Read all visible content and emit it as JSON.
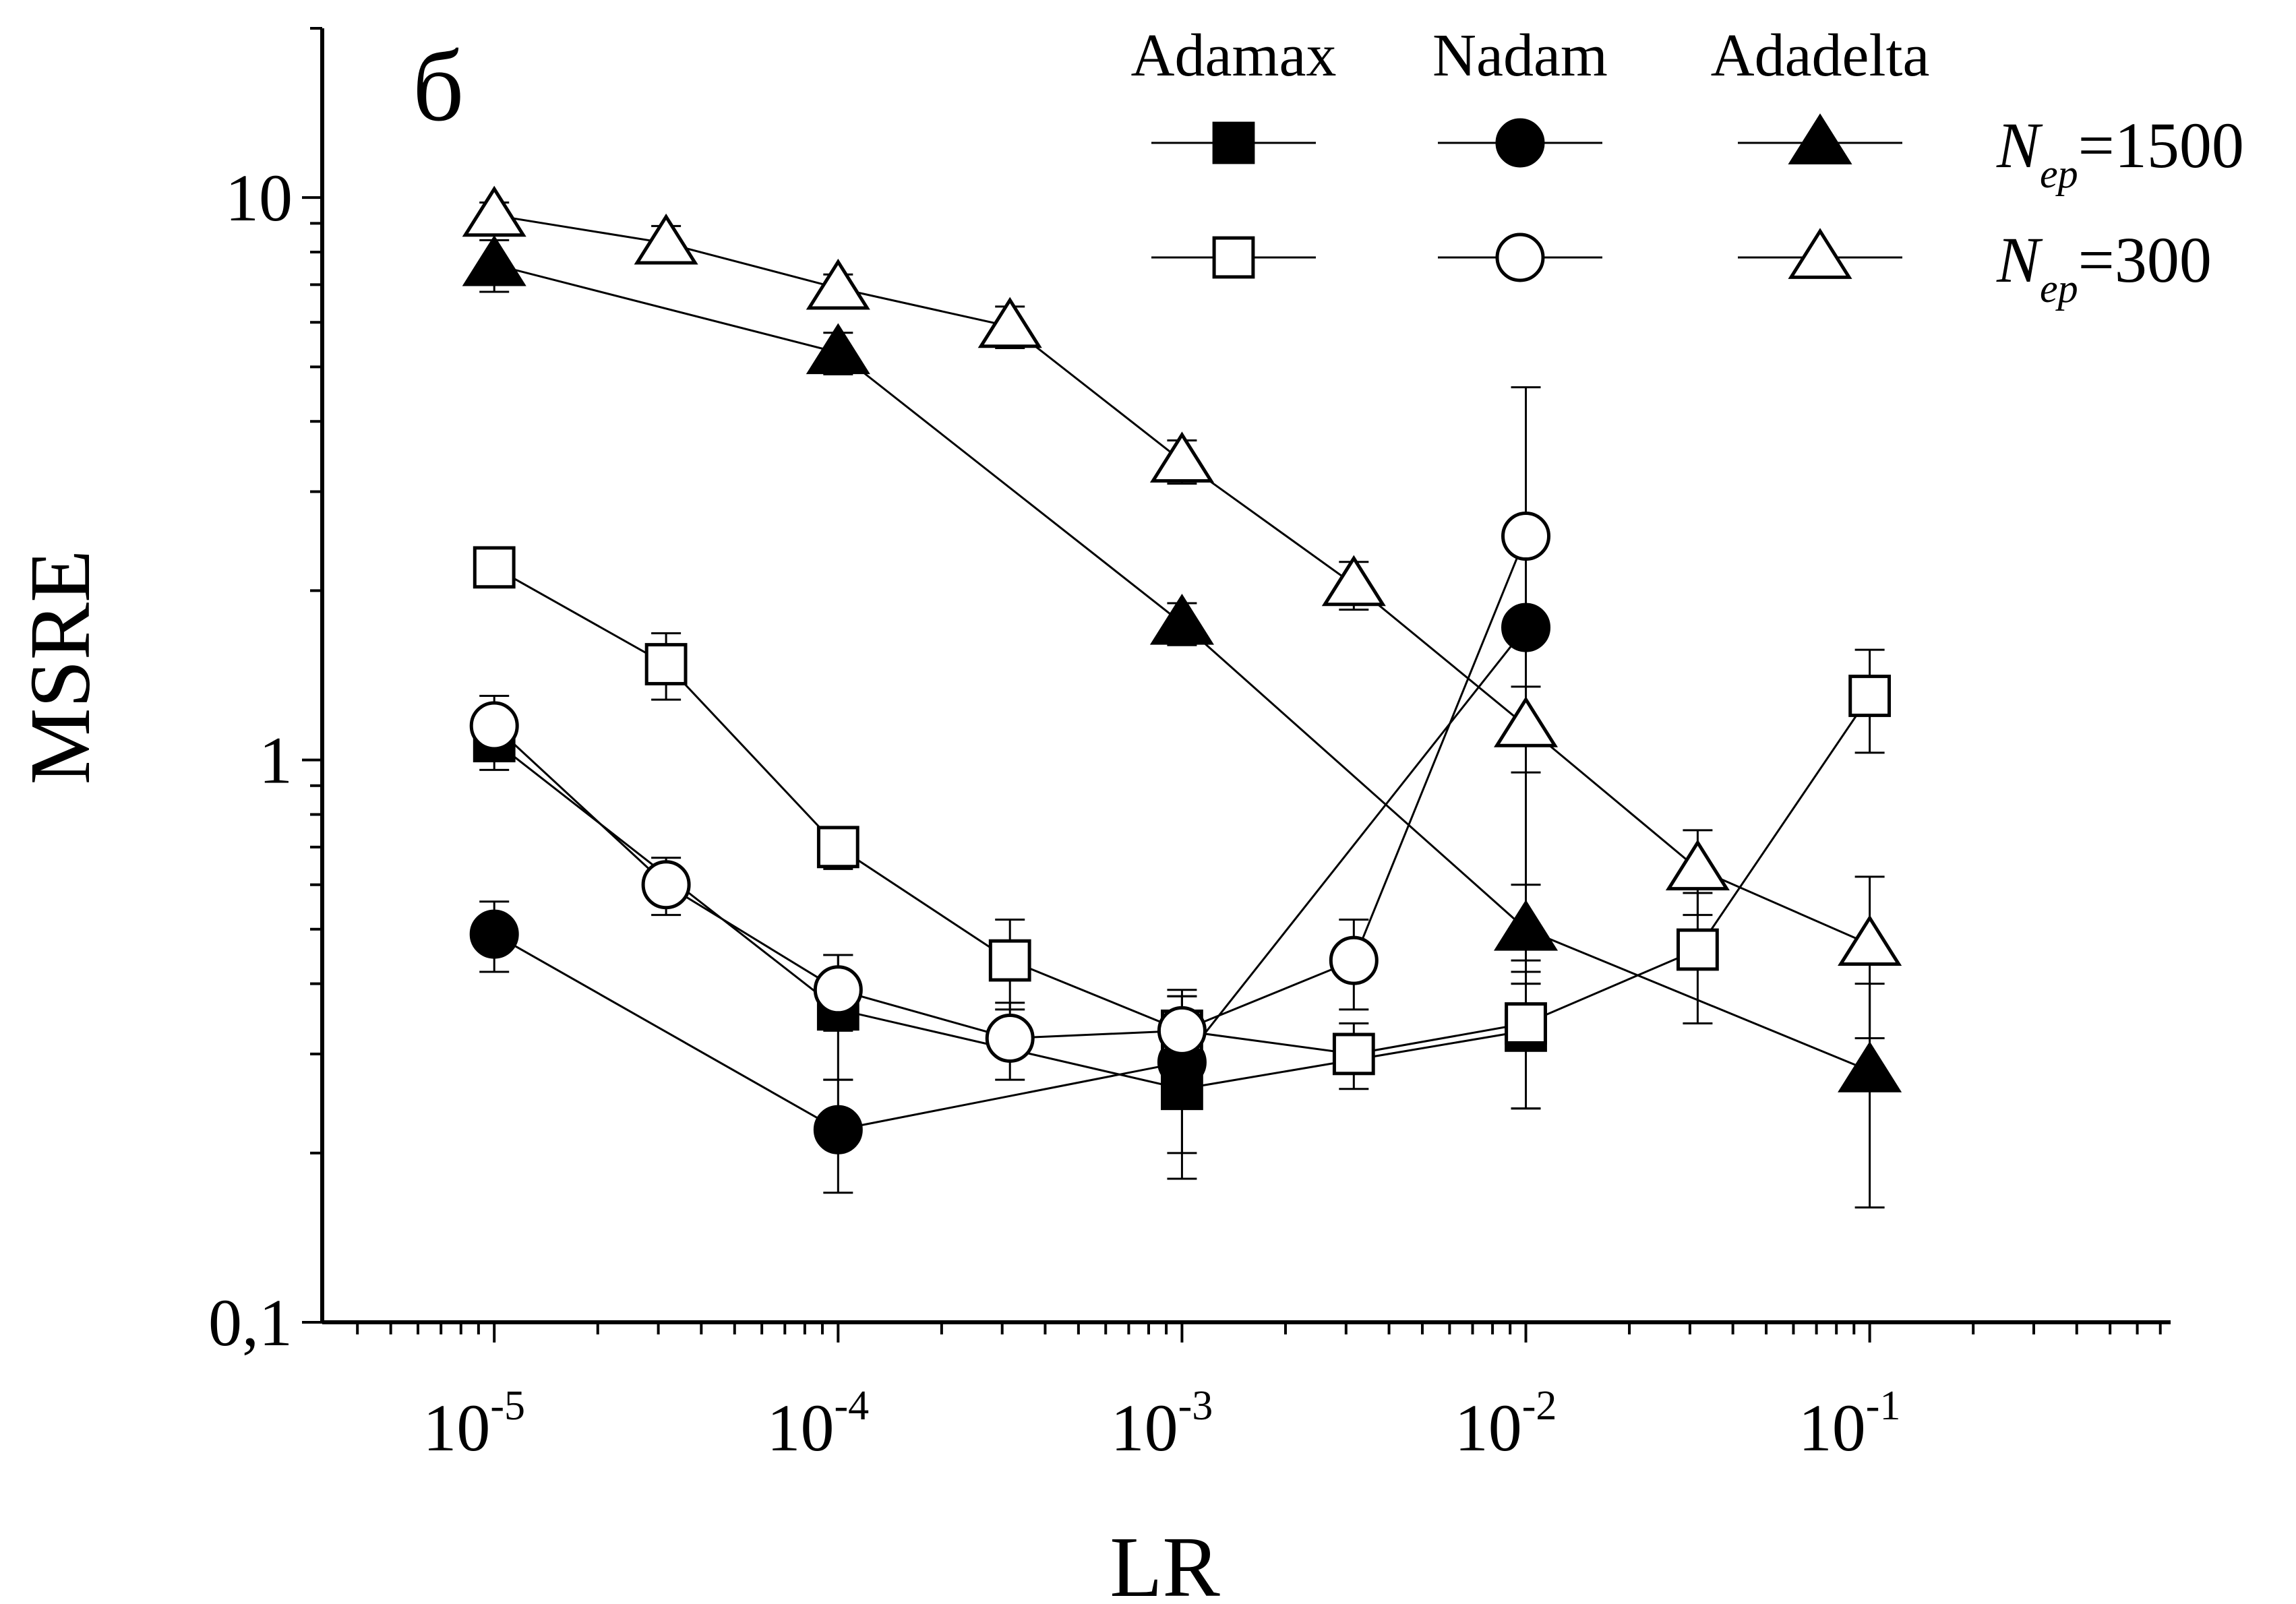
{
  "chart_data": {
    "type": "scatter",
    "panel_label": "б",
    "xlabel": "LR",
    "ylabel": "MSRE",
    "xscale": "log",
    "yscale": "log",
    "xlim": [
      3.16e-06,
      0.75
    ],
    "ylim": [
      0.1,
      20
    ],
    "grid": false,
    "x_tick_labels": [
      {
        "value": 1e-05,
        "base": "10",
        "exp": "-5"
      },
      {
        "value": 0.0001,
        "base": "10",
        "exp": "-4"
      },
      {
        "value": 0.001,
        "base": "10",
        "exp": "-3"
      },
      {
        "value": 0.01,
        "base": "10",
        "exp": "-2"
      },
      {
        "value": 0.1,
        "base": "10",
        "exp": "-1"
      }
    ],
    "y_tick_labels": [
      {
        "value": 0.1,
        "label": "0,1"
      },
      {
        "value": 1,
        "label": "1"
      },
      {
        "value": 10,
        "label": "10"
      }
    ],
    "legend": {
      "placement": "top-right",
      "columns": [
        "Adamax",
        "Nadam",
        "Adadelta"
      ],
      "rows": [
        {
          "n_symbol": "N",
          "n_subscript": "ep",
          "value_text": "=1500",
          "fill": "filled"
        },
        {
          "n_symbol": "N",
          "n_subscript": "ep",
          "value_text": "=300",
          "fill": "open"
        }
      ]
    },
    "series": [
      {
        "name": "Adamax",
        "epochs": 1500,
        "marker": "square",
        "filled": true,
        "x": [
          1e-05,
          0.0001,
          0.001,
          0.01
        ],
        "y": [
          1.08,
          0.36,
          0.26,
          0.33
        ],
        "err": [
          0.12,
          0.09,
          0.08,
          0.09
        ]
      },
      {
        "name": "Nadam",
        "epochs": 1500,
        "marker": "circle",
        "filled": true,
        "x": [
          1e-05,
          0.0001,
          0.001,
          0.01
        ],
        "y": [
          0.49,
          0.22,
          0.29,
          1.72
        ],
        "err": [
          0.07,
          0.05,
          0.09,
          0.65
        ]
      },
      {
        "name": "Adadelta",
        "epochs": 1500,
        "marker": "triangle",
        "filled": true,
        "x": [
          1e-05,
          0.0001,
          0.001,
          0.01,
          0.1
        ],
        "y": [
          7.6,
          5.3,
          1.75,
          0.5,
          0.28
        ],
        "err": [
          0.8,
          0.45,
          0.15,
          0.1,
          0.12
        ]
      },
      {
        "name": "Adamax",
        "epochs": 300,
        "marker": "square",
        "filled": false,
        "x": [
          1e-05,
          3.16e-05,
          0.0001,
          0.000316,
          0.001,
          0.00316,
          0.01,
          0.0316,
          0.1
        ],
        "y": [
          2.2,
          1.48,
          0.7,
          0.44,
          0.33,
          0.3,
          0.34,
          0.46,
          1.3
        ],
        "err": [
          0.12,
          0.2,
          0.06,
          0.08,
          0.05,
          0.04,
          0.1,
          0.12,
          0.27
        ]
      },
      {
        "name": "Nadam",
        "epochs": 300,
        "marker": "circle",
        "filled": false,
        "x": [
          1e-05,
          3.16e-05,
          0.0001,
          0.000316,
          0.001,
          0.00316,
          0.01
        ],
        "y": [
          1.15,
          0.6,
          0.39,
          0.32,
          0.33,
          0.44,
          2.5
        ],
        "err": [
          0.15,
          0.07,
          0.06,
          0.05,
          0.06,
          0.08,
          2.1
        ]
      },
      {
        "name": "Adadelta",
        "epochs": 300,
        "marker": "triangle",
        "filled": false,
        "x": [
          1e-05,
          3.16e-05,
          0.0001,
          0.000316,
          0.001,
          0.00316,
          0.01,
          0.0316,
          0.1
        ],
        "y": [
          9.3,
          8.3,
          6.9,
          5.9,
          3.4,
          2.05,
          1.15,
          0.64,
          0.47
        ],
        "err": [
          0.5,
          0.6,
          0.4,
          0.5,
          0.3,
          0.2,
          0.2,
          0.11,
          0.15
        ]
      }
    ]
  }
}
